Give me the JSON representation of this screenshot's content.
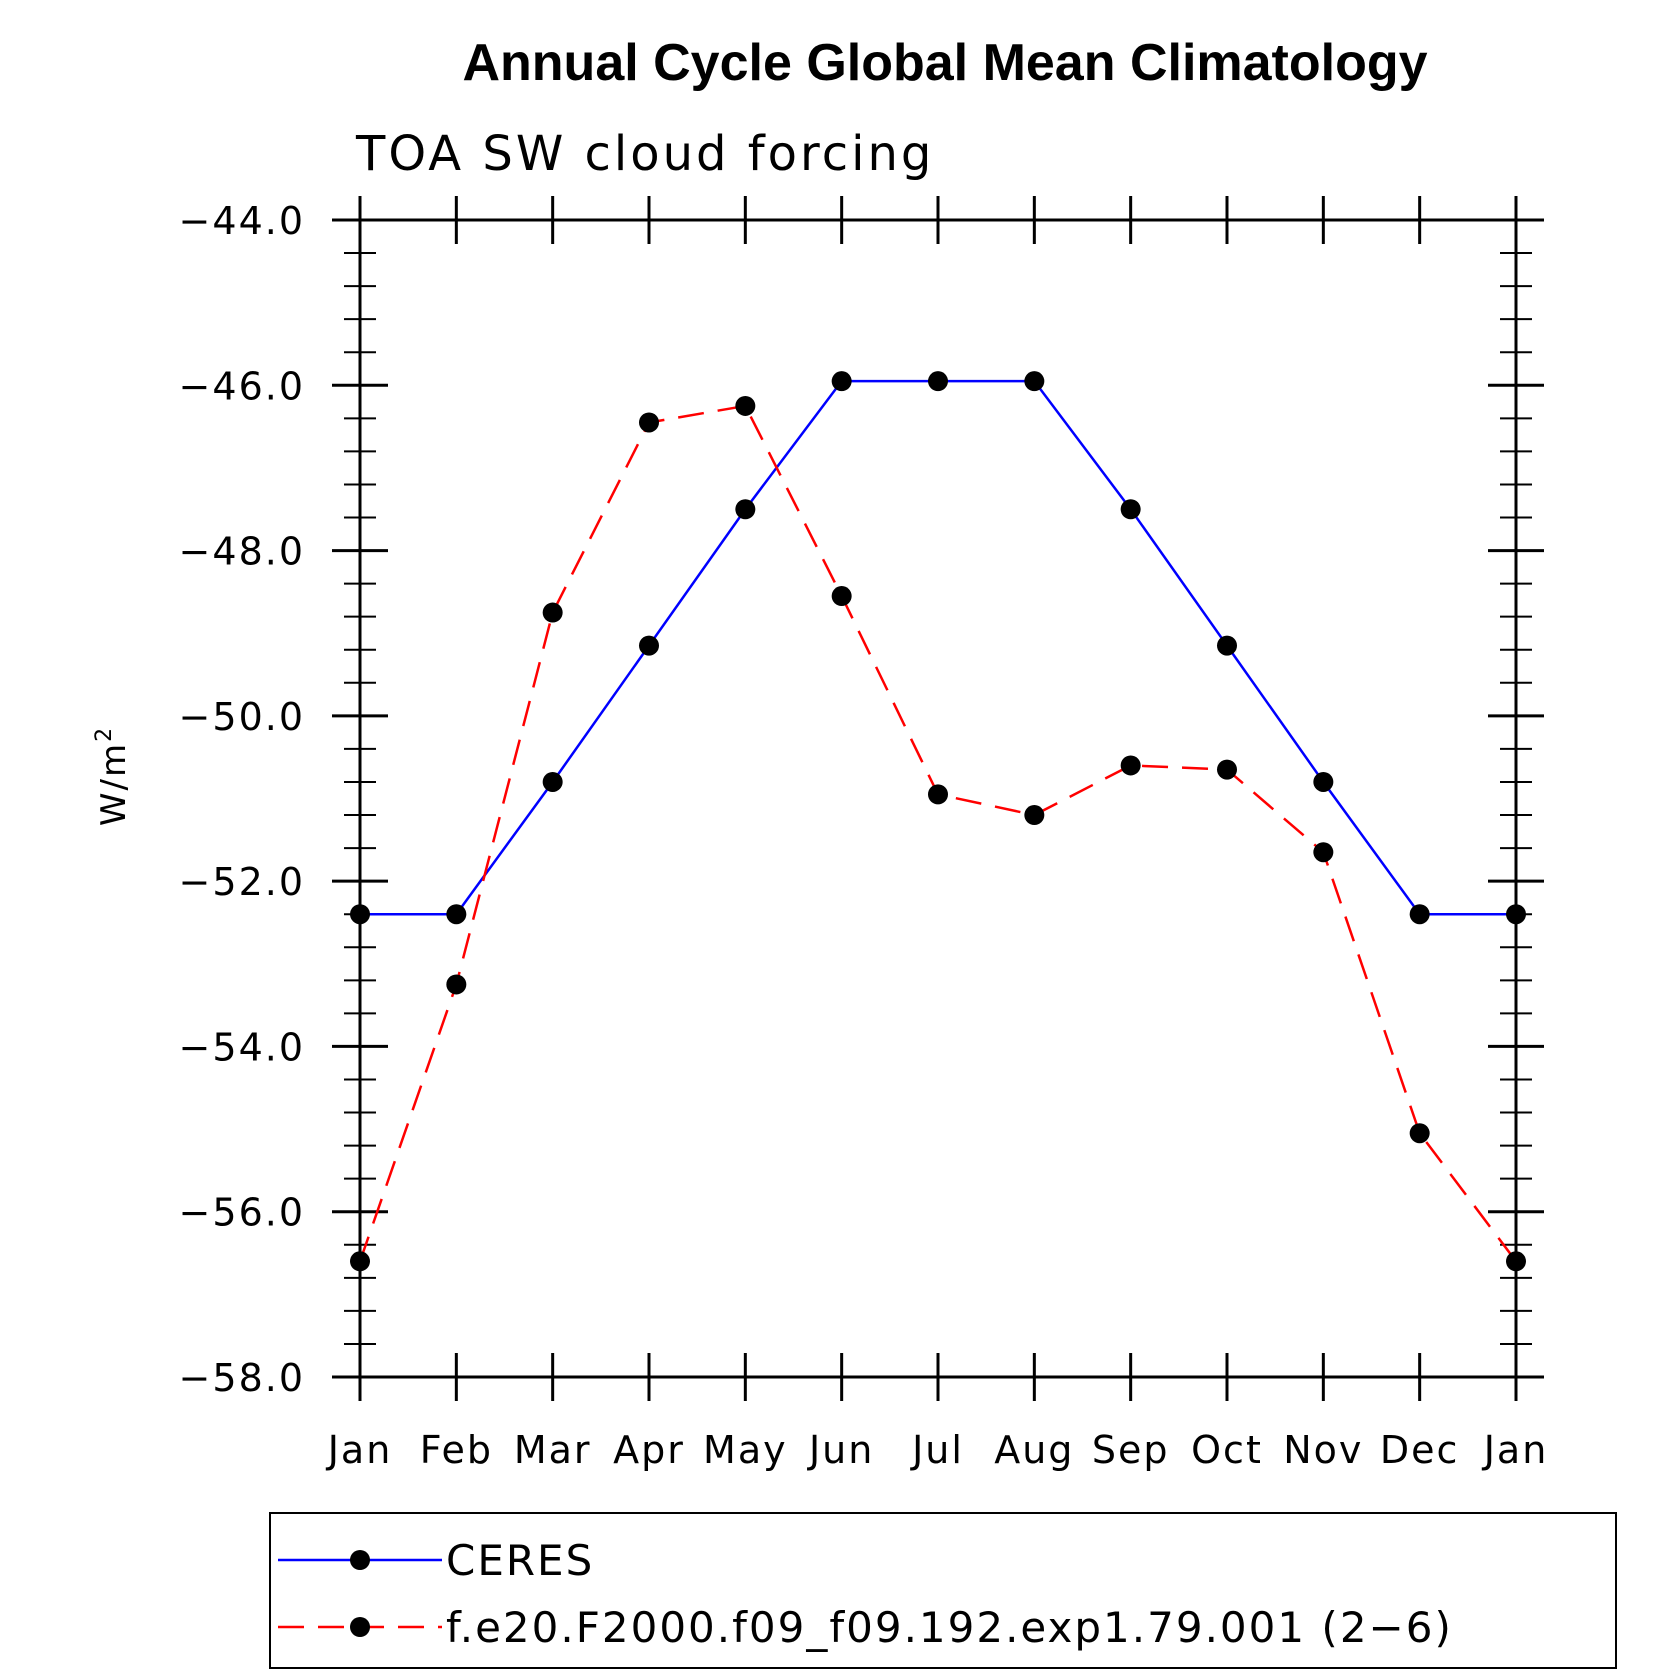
{
  "chart_data": {
    "type": "line",
    "title": "Annual Cycle Global Mean Climatology",
    "subtitle": "TOA SW cloud forcing",
    "ylabel": "W/m",
    "ylabel_superscript": "2",
    "xlabel": "",
    "categories": [
      "Jan",
      "Feb",
      "Mar",
      "Apr",
      "May",
      "Jun",
      "Jul",
      "Aug",
      "Sep",
      "Oct",
      "Nov",
      "Dec",
      "Jan"
    ],
    "ylim": [
      -58.0,
      -44.0
    ],
    "yticks": [
      "-44.0",
      "-46.0",
      "-48.0",
      "-50.0",
      "-52.0",
      "-54.0",
      "-56.0",
      "-58.0"
    ],
    "series": [
      {
        "name": "CERES",
        "color": "#0000ff",
        "dash": "solid",
        "values": [
          -52.4,
          -52.4,
          -50.8,
          -49.15,
          -47.5,
          -45.95,
          -45.95,
          -45.95,
          -47.5,
          -49.15,
          -50.8,
          -52.4,
          -52.4
        ]
      },
      {
        "name": "f.e20.F2000.f09_f09.192.exp1.79.001 (2−6)",
        "color": "#ff0000",
        "dash": "dashed",
        "values": [
          -56.6,
          -53.25,
          -48.75,
          -46.45,
          -46.25,
          -48.55,
          -50.95,
          -51.2,
          -50.6,
          -50.65,
          -51.65,
          -55.05,
          -56.6
        ]
      }
    ],
    "marker_color": "#000000",
    "legend_position": "bottom"
  }
}
